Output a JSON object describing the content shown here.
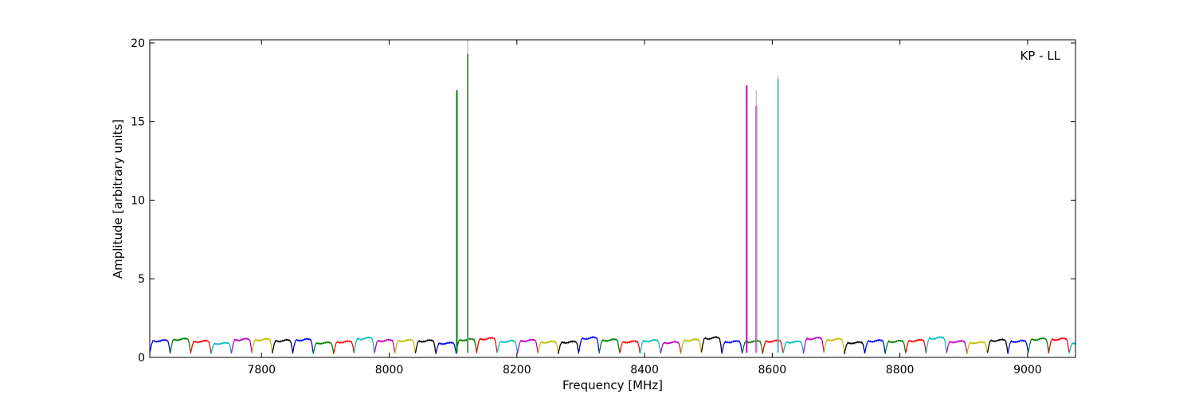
{
  "chart_data": {
    "type": "line",
    "title": "",
    "annotation": "KP - LL",
    "xlabel": "Frequency [MHz]",
    "ylabel": "Amplitude [arbitrary units]",
    "xlim": [
      7625,
      9075
    ],
    "ylim": [
      0,
      20.2
    ],
    "x_ticks": [
      7800,
      8000,
      8200,
      8400,
      8600,
      8800,
      9000
    ],
    "y_ticks": [
      0,
      5,
      10,
      15,
      20
    ],
    "grid": false,
    "legend": "none",
    "palette": [
      "#0000ff",
      "#008000",
      "#ff0000",
      "#00bfbf",
      "#bf00bf",
      "#bfbf00",
      "#000000"
    ],
    "channel_width_mhz": 32,
    "channel_level": 1.15,
    "channel_dip": 0.25,
    "spikes": [
      {
        "x": 8106,
        "y": 17.0,
        "color": "#008000"
      },
      {
        "x": 8123,
        "y": 19.3,
        "color": "#008000"
      },
      {
        "x": 8123,
        "y": 20.2,
        "color": "#aaaaaa"
      },
      {
        "x": 8560,
        "y": 17.3,
        "color": "#bf00bf"
      },
      {
        "x": 8575,
        "y": 16.0,
        "color": "#bf00bf"
      },
      {
        "x": 8575,
        "y": 17.0,
        "color": "#aaaaaa"
      },
      {
        "x": 8609,
        "y": 17.7,
        "color": "#00bfbf"
      },
      {
        "x": 8609,
        "y": 17.9,
        "color": "#aaaaaa"
      }
    ]
  }
}
